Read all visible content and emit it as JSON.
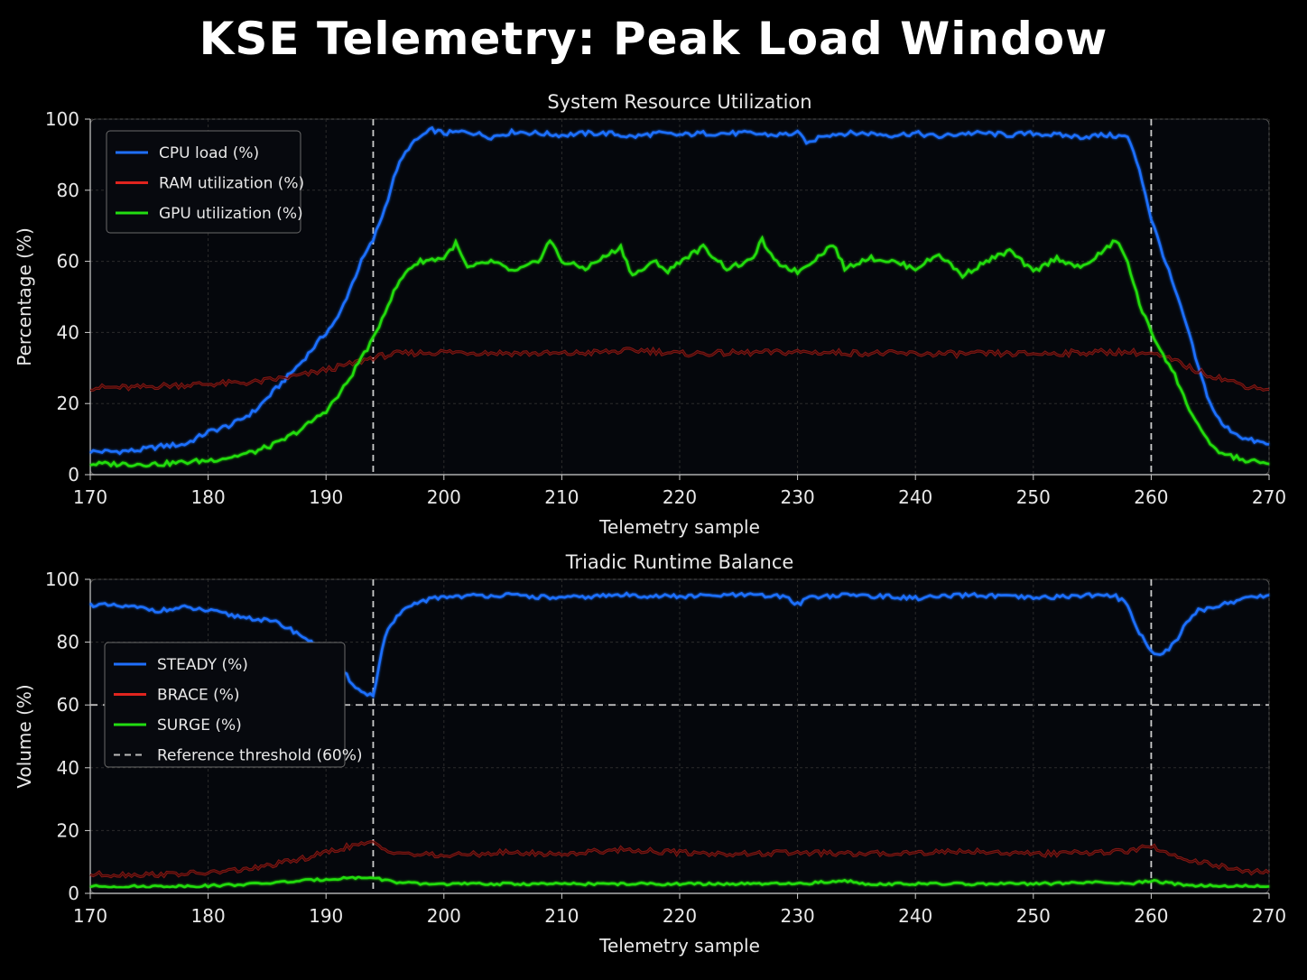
{
  "figure_title": "KSE Telemetry: Peak Load Window",
  "colors": {
    "background": "#000000",
    "panel_bg": "#05070c",
    "cpu": "#1f6fff",
    "ram": "#e0241e",
    "gpu": "#22dd11",
    "steady": "#1f6fff",
    "brace": "#e0241e",
    "surge": "#22dd11",
    "threshold": "#bbbbbb",
    "marker": "#cccccc"
  },
  "chart_data": [
    {
      "type": "line",
      "title": "System Resource Utilization",
      "xlabel": "Telemetry sample",
      "ylabel": "Percentage (%)",
      "xlim": [
        170,
        270
      ],
      "ylim": [
        0,
        100
      ],
      "xticks": [
        "170",
        "180",
        "190",
        "200",
        "210",
        "220",
        "230",
        "240",
        "250",
        "260",
        "270"
      ],
      "yticks": [
        "0",
        "20",
        "40",
        "60",
        "80",
        "100"
      ],
      "grid": true,
      "legend_position": "top-left",
      "vertical_markers": [
        194,
        260
      ],
      "series": [
        {
          "name": "CPU load (%)",
          "color_key": "cpu",
          "points": [
            [
              170,
              6.5
            ],
            [
              172,
              6.5
            ],
            [
              174,
              6.8
            ],
            [
              176,
              8
            ],
            [
              178,
              8.5
            ],
            [
              180,
              12
            ],
            [
              182,
              14
            ],
            [
              184,
              18
            ],
            [
              186,
              25
            ],
            [
              188,
              32
            ],
            [
              190,
              40
            ],
            [
              191,
              44
            ],
            [
              192,
              52
            ],
            [
              193,
              60
            ],
            [
              194,
              66
            ],
            [
              195,
              75
            ],
            [
              196,
              86
            ],
            [
              197,
              92
            ],
            [
              198,
              95
            ],
            [
              199,
              97
            ],
            [
              200,
              96
            ],
            [
              202,
              96.5
            ],
            [
              204,
              95
            ],
            [
              206,
              96.5
            ],
            [
              208,
              96
            ],
            [
              210,
              95.5
            ],
            [
              212,
              96
            ],
            [
              214,
              96
            ],
            [
              216,
              95
            ],
            [
              218,
              96
            ],
            [
              220,
              95.5
            ],
            [
              222,
              96
            ],
            [
              224,
              96
            ],
            [
              226,
              96
            ],
            [
              228,
              95.5
            ],
            [
              230,
              96
            ],
            [
              231,
              93
            ],
            [
              232,
              95.5
            ],
            [
              234,
              96
            ],
            [
              236,
              96
            ],
            [
              238,
              95.5
            ],
            [
              240,
              96
            ],
            [
              242,
              95
            ],
            [
              244,
              96
            ],
            [
              246,
              96
            ],
            [
              248,
              95.5
            ],
            [
              250,
              96
            ],
            [
              252,
              95.5
            ],
            [
              254,
              95
            ],
            [
              256,
              95.5
            ],
            [
              258,
              95
            ],
            [
              259,
              86
            ],
            [
              260,
              72
            ],
            [
              261,
              62
            ],
            [
              262,
              52
            ],
            [
              263,
              42
            ],
            [
              264,
              30
            ],
            [
              265,
              20
            ],
            [
              266,
              14
            ],
            [
              268,
              10
            ],
            [
              270,
              8.5
            ]
          ]
        },
        {
          "name": "RAM utilization (%)",
          "color_key": "ram",
          "points": [
            [
              170,
              24.5
            ],
            [
              174,
              24.5
            ],
            [
              176,
              25
            ],
            [
              180,
              25.5
            ],
            [
              184,
              26
            ],
            [
              188,
              28
            ],
            [
              192,
              31
            ],
            [
              194,
              33
            ],
            [
              196,
              34
            ],
            [
              200,
              34.5
            ],
            [
              210,
              34
            ],
            [
              217,
              35
            ],
            [
              220,
              34
            ],
            [
              230,
              34.5
            ],
            [
              240,
              34
            ],
            [
              250,
              34
            ],
            [
              256,
              34.5
            ],
            [
              258,
              34.5
            ],
            [
              260,
              34
            ],
            [
              262,
              32
            ],
            [
              264,
              29
            ],
            [
              266,
              27
            ],
            [
              268,
              25
            ],
            [
              270,
              24
            ]
          ]
        },
        {
          "name": "GPU utilization (%)",
          "color_key": "gpu",
          "points": [
            [
              170,
              3
            ],
            [
              172,
              3
            ],
            [
              174,
              3
            ],
            [
              176,
              3
            ],
            [
              178,
              3.5
            ],
            [
              180,
              4
            ],
            [
              182,
              5
            ],
            [
              184,
              6.5
            ],
            [
              186,
              9
            ],
            [
              188,
              13
            ],
            [
              190,
              18
            ],
            [
              191,
              22
            ],
            [
              192,
              27
            ],
            [
              193,
              33
            ],
            [
              194,
              38
            ],
            [
              195,
              46
            ],
            [
              196,
              53
            ],
            [
              197,
              58
            ],
            [
              198,
              60
            ],
            [
              200,
              61
            ],
            [
              201,
              65
            ],
            [
              202,
              58
            ],
            [
              204,
              60
            ],
            [
              206,
              57
            ],
            [
              208,
              60
            ],
            [
              209,
              66
            ],
            [
              210,
              60
            ],
            [
              212,
              58
            ],
            [
              214,
              62
            ],
            [
              215,
              64
            ],
            [
              216,
              56
            ],
            [
              218,
              60
            ],
            [
              219,
              57
            ],
            [
              220,
              60
            ],
            [
              222,
              64
            ],
            [
              224,
              58
            ],
            [
              226,
              60
            ],
            [
              227,
              66
            ],
            [
              228,
              60
            ],
            [
              230,
              57
            ],
            [
              232,
              62
            ],
            [
              233,
              65
            ],
            [
              234,
              58
            ],
            [
              236,
              61
            ],
            [
              238,
              60
            ],
            [
              240,
              58
            ],
            [
              242,
              62
            ],
            [
              244,
              56
            ],
            [
              246,
              60
            ],
            [
              248,
              63
            ],
            [
              250,
              57
            ],
            [
              252,
              61
            ],
            [
              254,
              58
            ],
            [
              256,
              63
            ],
            [
              257,
              66
            ],
            [
              258,
              60
            ],
            [
              259,
              48
            ],
            [
              260,
              40
            ],
            [
              261,
              34
            ],
            [
              262,
              28
            ],
            [
              263,
              20
            ],
            [
              264,
              14
            ],
            [
              265,
              8
            ],
            [
              266,
              6
            ],
            [
              268,
              4
            ],
            [
              270,
              3
            ]
          ]
        }
      ]
    },
    {
      "type": "line",
      "title": "Triadic Runtime Balance",
      "xlabel": "Telemetry sample",
      "ylabel": "Volume (%)",
      "xlim": [
        170,
        270
      ],
      "ylim": [
        0,
        100
      ],
      "xticks": [
        "170",
        "180",
        "190",
        "200",
        "210",
        "220",
        "230",
        "240",
        "250",
        "260",
        "270"
      ],
      "yticks": [
        "0",
        "20",
        "40",
        "60",
        "80",
        "100"
      ],
      "grid": true,
      "legend_position": "center-left",
      "vertical_markers": [
        194,
        260
      ],
      "reference_threshold": 60,
      "series": [
        {
          "name": "STEADY (%)",
          "color_key": "steady",
          "points": [
            [
              170,
              92
            ],
            [
              172,
              91.5
            ],
            [
              174,
              91
            ],
            [
              176,
              90
            ],
            [
              178,
              91
            ],
            [
              180,
              90
            ],
            [
              182,
              88.5
            ],
            [
              184,
              87.5
            ],
            [
              186,
              86
            ],
            [
              187,
              84
            ],
            [
              188,
              82
            ],
            [
              189,
              79
            ],
            [
              190,
              76
            ],
            [
              191,
              73
            ],
            [
              192,
              68
            ],
            [
              193,
              64
            ],
            [
              194,
              63
            ],
            [
              195,
              82
            ],
            [
              196,
              88
            ],
            [
              197,
              91
            ],
            [
              198,
              93
            ],
            [
              200,
              94.5
            ],
            [
              205,
              95
            ],
            [
              210,
              94
            ],
            [
              215,
              95
            ],
            [
              220,
              94.5
            ],
            [
              225,
              95
            ],
            [
              229,
              94.5
            ],
            [
              230,
              92
            ],
            [
              231,
              94.5
            ],
            [
              235,
              95
            ],
            [
              240,
              94
            ],
            [
              245,
              95
            ],
            [
              250,
              94
            ],
            [
              255,
              95
            ],
            [
              257,
              94.5
            ],
            [
              258,
              92
            ],
            [
              259,
              83
            ],
            [
              260,
              77
            ],
            [
              261,
              76
            ],
            [
              262,
              80
            ],
            [
              263,
              86
            ],
            [
              264,
              90
            ],
            [
              266,
              92
            ],
            [
              268,
              94
            ],
            [
              270,
              95
            ]
          ]
        },
        {
          "name": "BRACE (%)",
          "color_key": "brace",
          "points": [
            [
              170,
              6
            ],
            [
              175,
              6
            ],
            [
              180,
              6.5
            ],
            [
              184,
              8
            ],
            [
              188,
              11
            ],
            [
              190,
              13
            ],
            [
              192,
              15
            ],
            [
              194,
              16
            ],
            [
              195,
              14
            ],
            [
              197,
              12.5
            ],
            [
              200,
              12
            ],
            [
              205,
              13
            ],
            [
              210,
              12.5
            ],
            [
              215,
              14
            ],
            [
              220,
              13
            ],
            [
              225,
              12.5
            ],
            [
              230,
              13
            ],
            [
              235,
              12.5
            ],
            [
              240,
              13
            ],
            [
              245,
              13.5
            ],
            [
              250,
              12.5
            ],
            [
              255,
              13
            ],
            [
              258,
              13.5
            ],
            [
              260,
              15
            ],
            [
              262,
              12
            ],
            [
              264,
              10
            ],
            [
              266,
              8.5
            ],
            [
              268,
              7
            ],
            [
              270,
              6.5
            ]
          ]
        },
        {
          "name": "SURGE (%)",
          "color_key": "surge",
          "points": [
            [
              170,
              2.2
            ],
            [
              175,
              2.2
            ],
            [
              180,
              2.4
            ],
            [
              184,
              3
            ],
            [
              188,
              4
            ],
            [
              190,
              4.5
            ],
            [
              192,
              5
            ],
            [
              194,
              5
            ],
            [
              196,
              3.5
            ],
            [
              198,
              3
            ],
            [
              200,
              3
            ],
            [
              210,
              3
            ],
            [
              220,
              3
            ],
            [
              230,
              3
            ],
            [
              234,
              4
            ],
            [
              236,
              3
            ],
            [
              240,
              3
            ],
            [
              250,
              3
            ],
            [
              255,
              3.5
            ],
            [
              258,
              3
            ],
            [
              260,
              4
            ],
            [
              262,
              3
            ],
            [
              264,
              2.5
            ],
            [
              268,
              2.3
            ],
            [
              270,
              2.2
            ]
          ]
        },
        {
          "name": "Reference threshold (60%)",
          "color_key": "threshold",
          "dashed": true,
          "points": [
            [
              170,
              60
            ],
            [
              270,
              60
            ]
          ]
        }
      ]
    }
  ]
}
